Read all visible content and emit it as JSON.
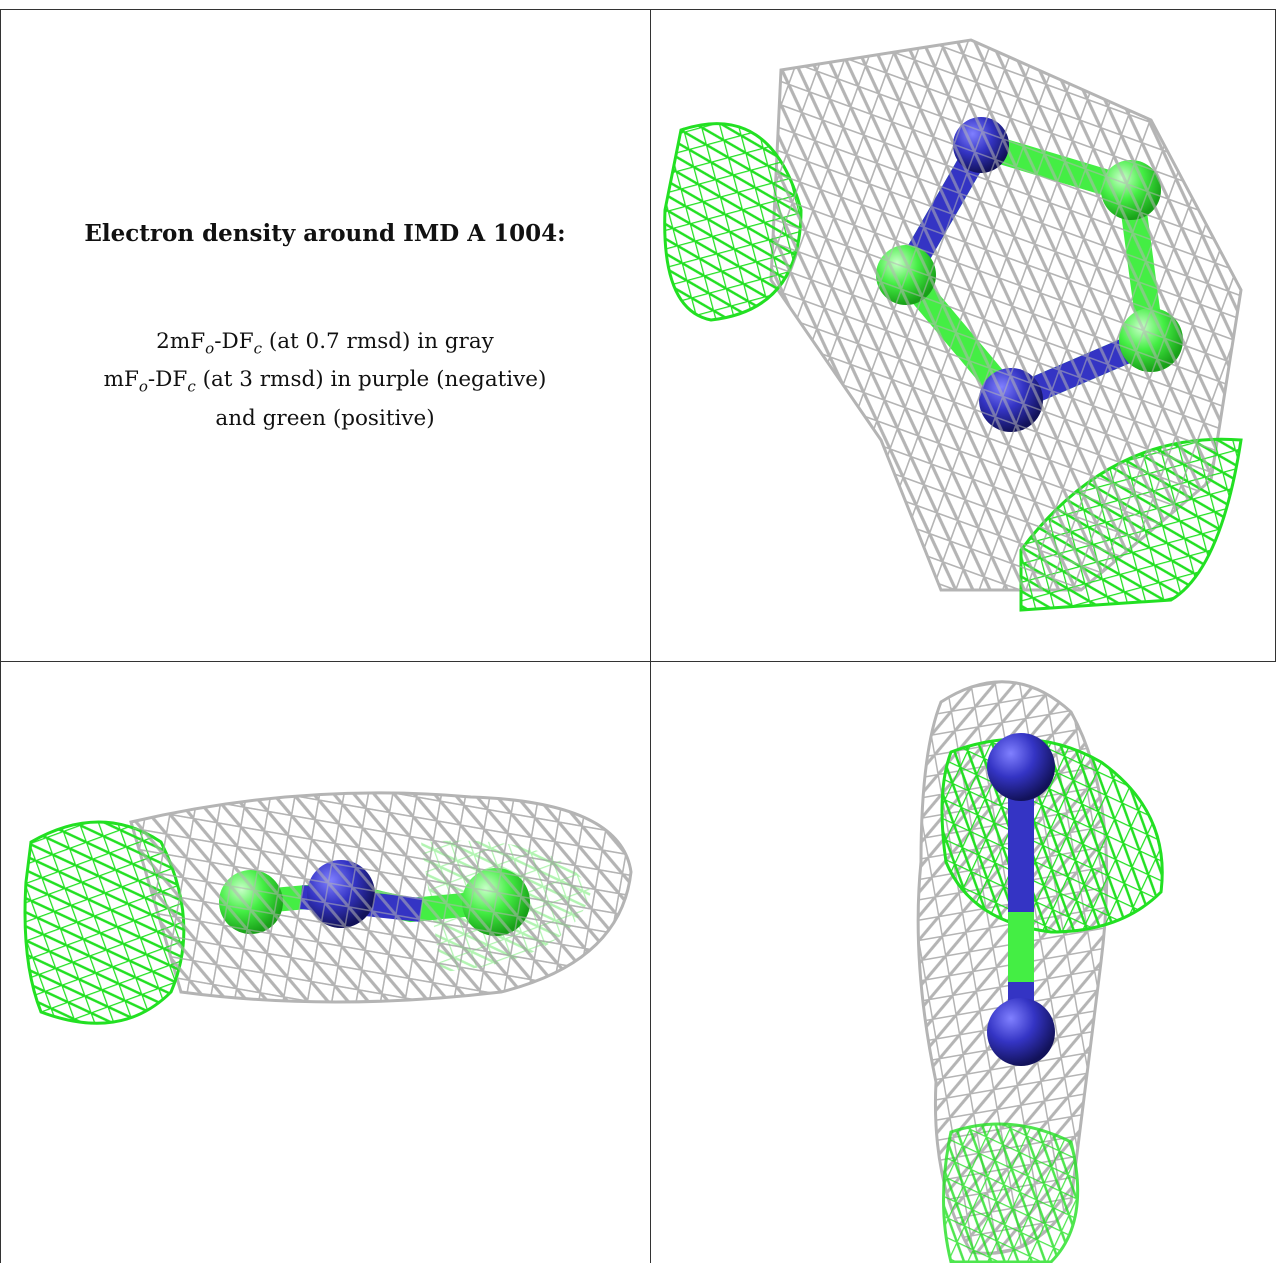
{
  "caption": {
    "title": "Electron density around IMD A 1004:",
    "line1": {
      "prefix": "2mF",
      "sub1": "o",
      "mid": "-DF",
      "sub2": "c",
      "suffix": " (at 0.7 rmsd) in gray"
    },
    "line2": {
      "prefix": "mF",
      "sub1": "o",
      "mid": "-DF",
      "sub2": "c",
      "suffix": " (at 3 rmsd) in purple (negative)"
    },
    "line3": "and green (positive)"
  },
  "colors": {
    "mesh_gray": "#b9b9b9",
    "mesh_green": "#22e022",
    "atom_carbon": "#44ee44",
    "atom_nitrogen": "#3434c4",
    "grid_line": "#333333"
  },
  "panels": [
    {
      "view": "top-right",
      "content": "molecule-view-front"
    },
    {
      "view": "bottom-left",
      "content": "molecule-view-side"
    },
    {
      "view": "bottom-right",
      "content": "molecule-view-end"
    }
  ]
}
